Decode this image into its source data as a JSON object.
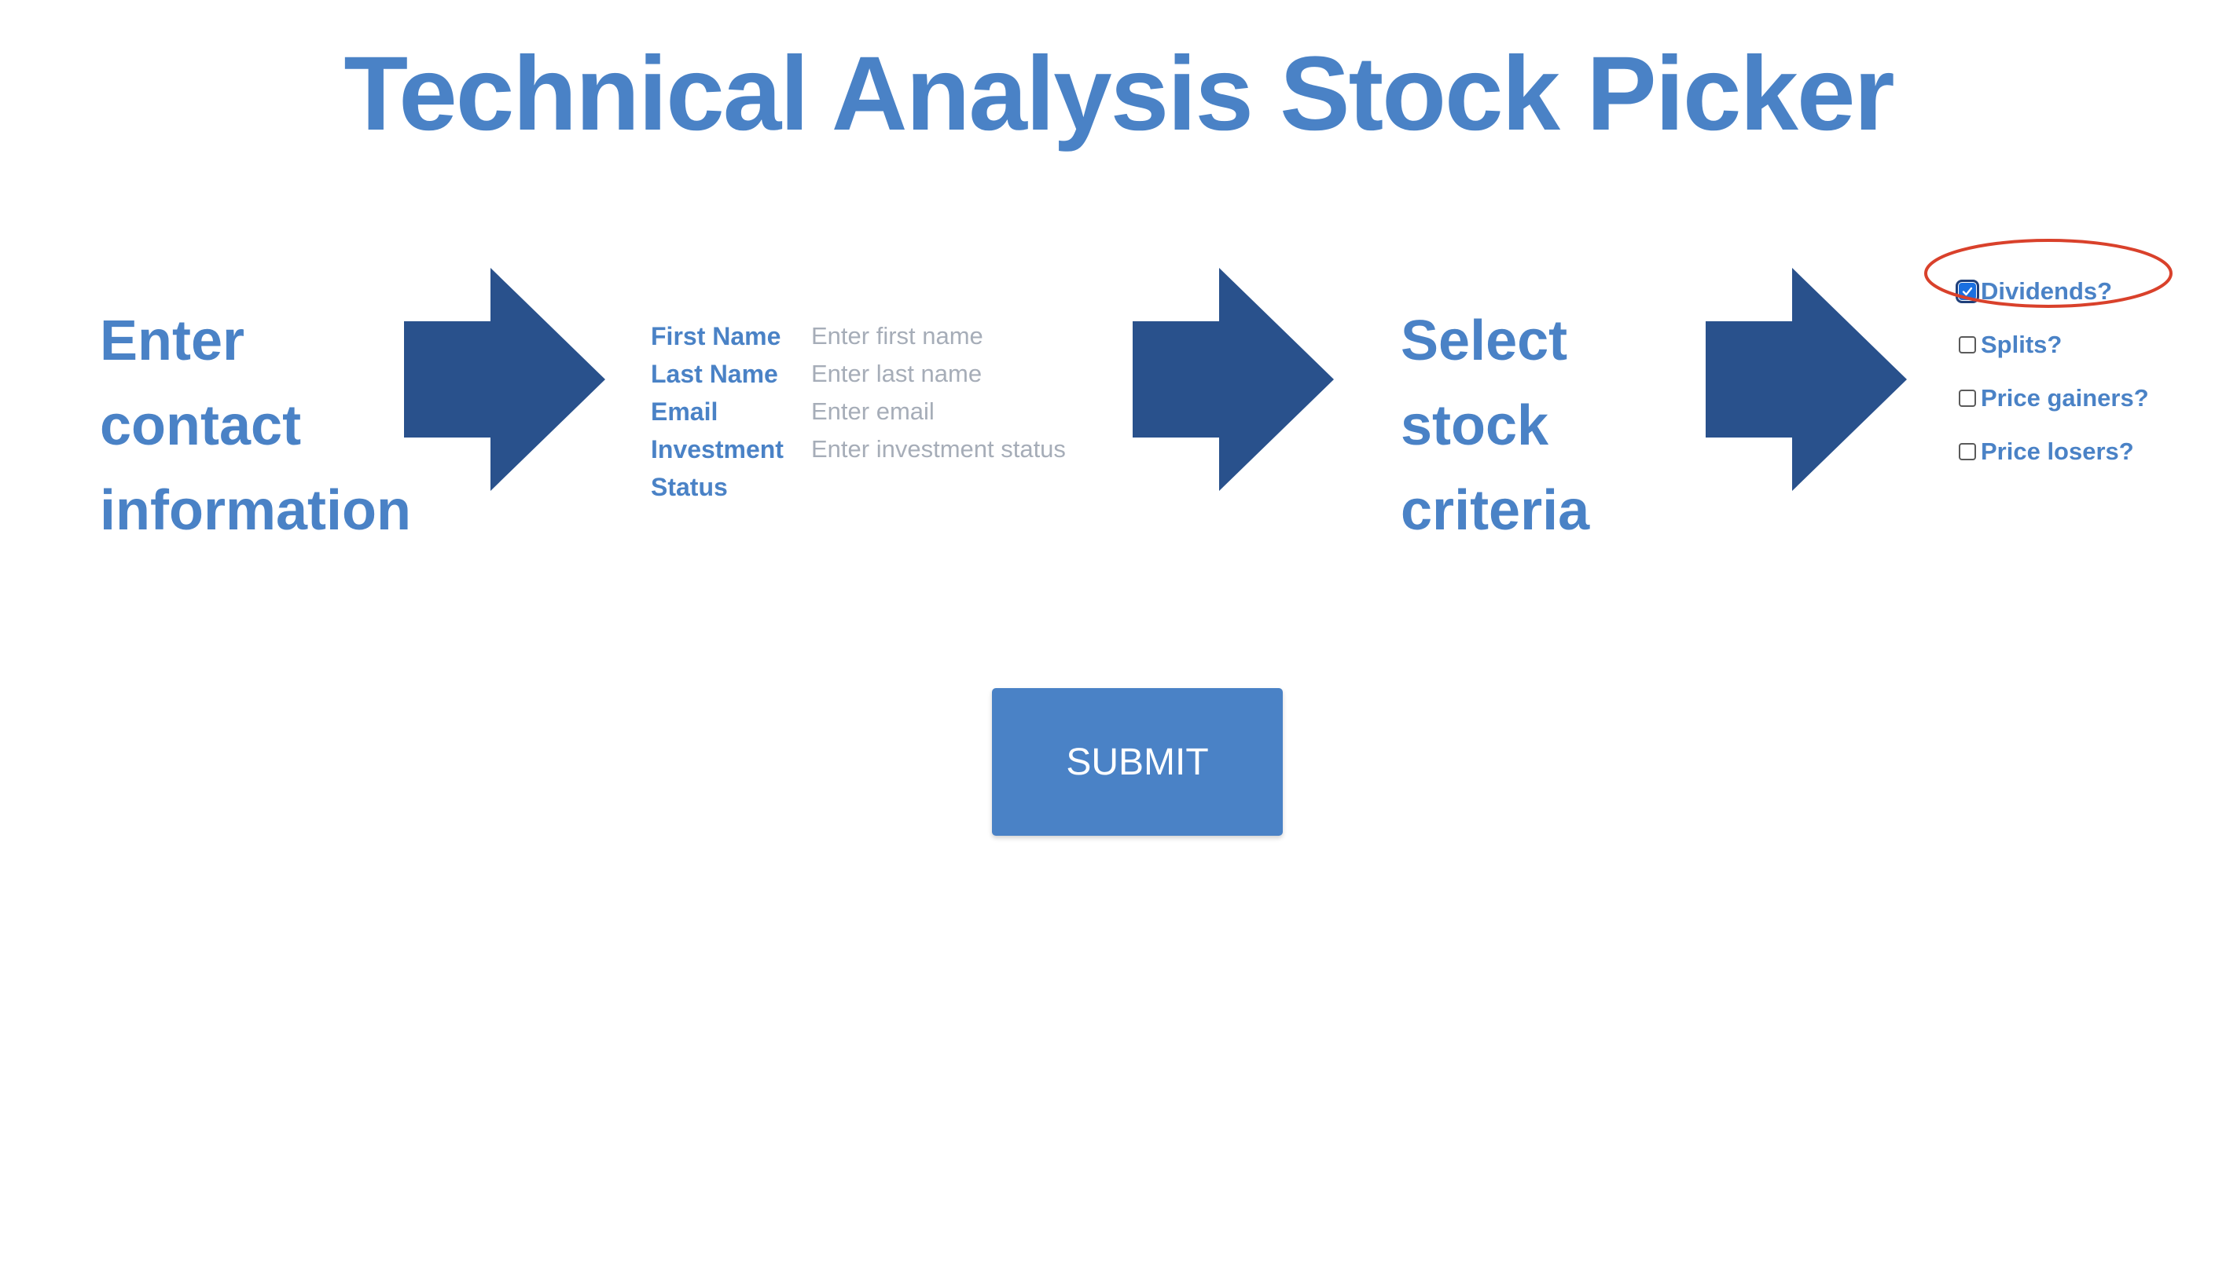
{
  "page": {
    "title": "Technical Analysis Stock Picker"
  },
  "steps": {
    "contact": [
      "Enter",
      "contact",
      "information"
    ],
    "criteria": [
      "Select",
      "stock",
      "criteria"
    ]
  },
  "form": {
    "first_name_label": "First Name",
    "first_name_placeholder": "Enter first name",
    "first_name_value": "",
    "last_name_label": "Last Name",
    "last_name_placeholder": "Enter last name",
    "last_name_value": "",
    "email_label": "Email",
    "email_placeholder": "Enter email",
    "email_value": "",
    "investment_label_line1": "Investment",
    "investment_label_line2": "Status",
    "investment_placeholder": "Enter investment status",
    "investment_value": ""
  },
  "criteria_options": [
    {
      "label": "Dividends?",
      "checked": true
    },
    {
      "label": "Splits?",
      "checked": false
    },
    {
      "label": "Price gainers?",
      "checked": false
    },
    {
      "label": "Price losers?",
      "checked": false
    }
  ],
  "submit": {
    "label": "SUBMIT"
  },
  "colors": {
    "title_blue": "#4a82c6",
    "arrow_navy": "#29518c",
    "placeholder_gray": "#a6adb8",
    "highlight_red": "#d9412b",
    "checkbox_checked": "#1a6fe0"
  },
  "icons": {
    "arrow": "right-arrow-icon",
    "check": "checkmark-icon"
  }
}
